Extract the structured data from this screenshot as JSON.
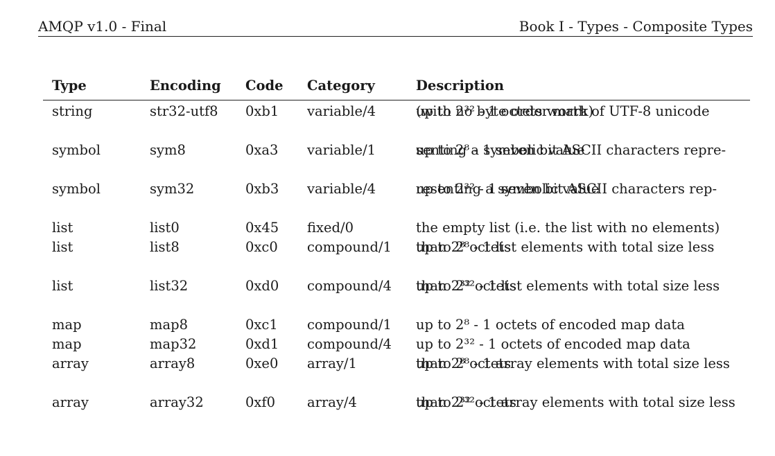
{
  "header": {
    "left": "AMQP v1.0 - Final",
    "right": "Book I - Types - Composite Types"
  },
  "table": {
    "columns": [
      "Type",
      "Encoding",
      "Code",
      "Category",
      "Description"
    ],
    "rows": [
      {
        "type": "string",
        "encoding": "str32-utf8",
        "code": "0xb1",
        "category": "variable/4",
        "desc": [
          "up to 2³² - 1 octets worth of UTF-8 unicode",
          "(with no byte order mark)"
        ]
      },
      {
        "type": "symbol",
        "encoding": "sym8",
        "code": "0xa3",
        "category": "variable/1",
        "desc": [
          "up to 2⁸ - 1 seven bit ASCII characters repre-",
          "senting a symbolic value"
        ]
      },
      {
        "type": "symbol",
        "encoding": "sym32",
        "code": "0xb3",
        "category": "variable/4",
        "desc": [
          "up to 2³² - 1 seven bit ASCII characters rep-",
          "resenting a symbolic value"
        ]
      },
      {
        "type": "list",
        "encoding": "list0",
        "code": "0x45",
        "category": "fixed/0",
        "desc": [
          "the empty list (i.e. the list with no elements)"
        ]
      },
      {
        "type": "list",
        "encoding": "list8",
        "code": "0xc0",
        "category": "compound/1",
        "desc": [
          "up to 2⁸ - 1 list elements with total size less",
          "than 2⁸ octets"
        ]
      },
      {
        "type": "list",
        "encoding": "list32",
        "code": "0xd0",
        "category": "compound/4",
        "desc": [
          "up to 2³² - 1 list elements with total size less",
          "than 2³² octets"
        ]
      },
      {
        "type": "map",
        "encoding": "map8",
        "code": "0xc1",
        "category": "compound/1",
        "desc": [
          "up to 2⁸ - 1 octets of encoded map data"
        ]
      },
      {
        "type": "map",
        "encoding": "map32",
        "code": "0xd1",
        "category": "compound/4",
        "desc": [
          "up to 2³² - 1 octets of encoded map data"
        ]
      },
      {
        "type": "array",
        "encoding": "array8",
        "code": "0xe0",
        "category": "array/1",
        "desc": [
          "up to 2⁸ - 1 array elements with total size less",
          "than 2⁸ octets"
        ]
      },
      {
        "type": "array",
        "encoding": "array32",
        "code": "0xf0",
        "category": "array/4",
        "desc": [
          "up to 2³² - 1 array elements with total size less",
          "than 2³² octets"
        ]
      }
    ]
  }
}
